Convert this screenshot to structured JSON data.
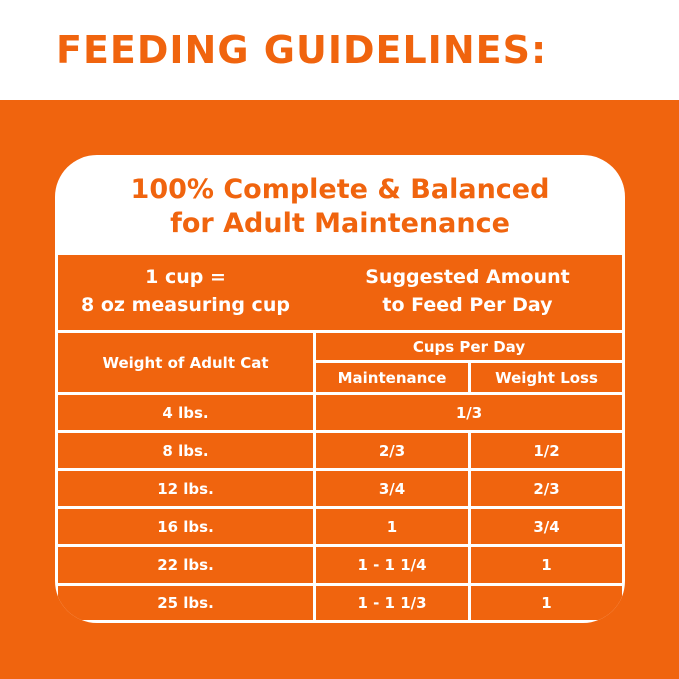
{
  "title": "FEEDING GUIDELINES:",
  "subtitle_line1": "100% Complete & Balanced",
  "subtitle_line2": "for Adult Maintenance",
  "colors": {
    "accent": "#f0640e",
    "background_top": "#ffffff"
  },
  "table": {
    "cup_note_line1": "1 cup =",
    "cup_note_line2": "8 oz measuring cup",
    "suggested_line1": "Suggested Amount",
    "suggested_line2": "to Feed Per Day",
    "weight_header": "Weight of Adult Cat",
    "cups_header": "Cups Per Day",
    "maintenance_header": "Maintenance",
    "weight_loss_header": "Weight Loss",
    "rows": [
      {
        "weight": "4 lbs.",
        "combined": "1/3"
      },
      {
        "weight": "8 lbs.",
        "maintenance": "2/3",
        "weight_loss": "1/2"
      },
      {
        "weight": "12 lbs.",
        "maintenance": "3/4",
        "weight_loss": "2/3"
      },
      {
        "weight": "16 lbs.",
        "maintenance": "1",
        "weight_loss": "3/4"
      },
      {
        "weight": "22 lbs.",
        "maintenance": "1 - 1 1/4",
        "weight_loss": "1"
      },
      {
        "weight": "25 lbs.",
        "maintenance": "1 - 1 1/3",
        "weight_loss": "1"
      }
    ]
  }
}
